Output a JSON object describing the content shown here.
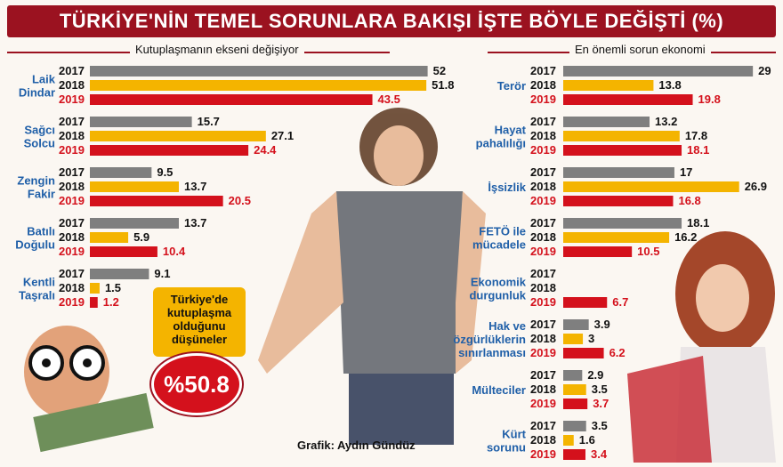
{
  "title": "TÜRKİYE'NİN TEMEL SORUNLARA BAKIŞI İŞTE BÖYLE DEĞİŞTİ (%)",
  "left_subtitle": "Kutuplaşmanın ekseni değişiyor",
  "right_subtitle": "En önemli sorun ekonomi",
  "callout": {
    "lines": [
      "Türkiye'de",
      "kutuplaşma",
      "olduğunu",
      "düşüneler"
    ],
    "value": "%50.8"
  },
  "credit": "Grafik: Aydın Gündüz",
  "colors": {
    "2017": "#7f7f7f",
    "2018": "#f4b400",
    "2019": "#d4111c",
    "accent": "#9b1220"
  },
  "chart_data": [
    {
      "type": "bar",
      "title": "Kutuplaşmanın ekseni değişiyor",
      "categories": [
        [
          "Laik",
          "Dindar"
        ],
        [
          "Sağcı",
          "Solcu"
        ],
        [
          "Zengin",
          "Fakir"
        ],
        [
          "Batılı",
          "Doğulu"
        ],
        [
          "Kentli",
          "Taşralı"
        ]
      ],
      "series": [
        {
          "name": "2017",
          "values": [
            52,
            15.7,
            9.5,
            13.7,
            9.1
          ]
        },
        {
          "name": "2018",
          "values": [
            51.8,
            27.1,
            13.7,
            5.9,
            1.5
          ]
        },
        {
          "name": "2019",
          "values": [
            43.5,
            24.4,
            20.5,
            10.4,
            1.2
          ]
        }
      ]
    },
    {
      "type": "bar",
      "title": "En önemli sorun ekonomi",
      "categories": [
        [
          "Terör"
        ],
        [
          "Hayat",
          "pahalılığı"
        ],
        [
          "İşsizlik"
        ],
        [
          "FETÖ ile",
          "mücadele"
        ],
        [
          "Ekonomik",
          "durgunluk"
        ],
        [
          "Hak ve",
          "özgürlüklerin",
          "sınırlanması"
        ],
        [
          "Mülteciler"
        ],
        [
          "Kürt",
          "sorunu"
        ]
      ],
      "series": [
        {
          "name": "2017",
          "values": [
            29,
            13.2,
            17,
            18.1,
            null,
            3.9,
            2.9,
            3.5
          ]
        },
        {
          "name": "2018",
          "values": [
            13.8,
            17.8,
            26.9,
            16.2,
            null,
            3,
            3.5,
            1.6
          ]
        },
        {
          "name": "2019",
          "values": [
            19.8,
            18.1,
            16.8,
            10.5,
            6.7,
            6.2,
            3.7,
            3.4
          ]
        }
      ]
    }
  ]
}
